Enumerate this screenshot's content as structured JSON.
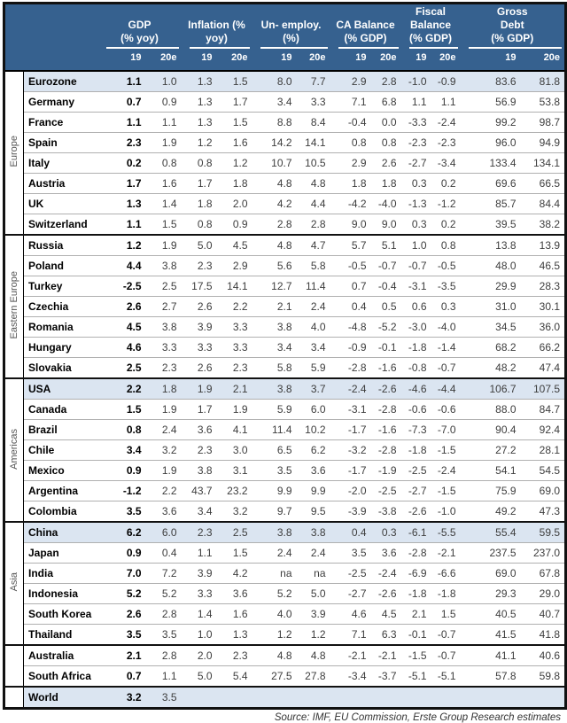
{
  "colors": {
    "header_bg": "#36618f",
    "highlight_bg": "#dbe5f1",
    "border": "#111111"
  },
  "header": {
    "groups": [
      {
        "lines": [
          "GDP",
          "(% yoy)"
        ]
      },
      {
        "lines": [
          "Inflation (%",
          "yoy)"
        ]
      },
      {
        "lines": [
          "Un- employ.",
          "(%)"
        ]
      },
      {
        "lines": [
          "CA Balance",
          "(% GDP)"
        ]
      },
      {
        "lines": [
          "Fiscal",
          "Balance",
          "(% GDP)"
        ]
      },
      {
        "lines": [
          "Gross",
          "Debt",
          "(% GDP)"
        ]
      }
    ],
    "year_labels": [
      "19",
      "20e"
    ]
  },
  "sections": [
    {
      "region": "Europe",
      "rows": [
        {
          "country": "Eurozone",
          "highlight": true,
          "values": [
            "1.1",
            "1.0",
            "1.3",
            "1.5",
            "8.0",
            "7.7",
            "2.9",
            "2.8",
            "-1.0",
            "-0.9",
            "83.6",
            "81.8"
          ]
        },
        {
          "country": "Germany",
          "highlight": false,
          "values": [
            "0.7",
            "0.9",
            "1.3",
            "1.7",
            "3.4",
            "3.3",
            "7.1",
            "6.8",
            "1.1",
            "1.1",
            "56.9",
            "53.8"
          ]
        },
        {
          "country": "France",
          "highlight": false,
          "values": [
            "1.1",
            "1.1",
            "1.3",
            "1.5",
            "8.8",
            "8.4",
            "-0.4",
            "0.0",
            "-3.3",
            "-2.4",
            "99.2",
            "98.7"
          ]
        },
        {
          "country": "Spain",
          "highlight": false,
          "values": [
            "2.3",
            "1.9",
            "1.2",
            "1.6",
            "14.2",
            "14.1",
            "0.8",
            "0.8",
            "-2.3",
            "-2.3",
            "96.0",
            "94.9"
          ]
        },
        {
          "country": "Italy",
          "highlight": false,
          "values": [
            "0.2",
            "0.8",
            "0.8",
            "1.2",
            "10.7",
            "10.5",
            "2.9",
            "2.6",
            "-2.7",
            "-3.4",
            "133.4",
            "134.1"
          ]
        },
        {
          "country": "Austria",
          "highlight": false,
          "values": [
            "1.7",
            "1.6",
            "1.7",
            "1.8",
            "4.8",
            "4.8",
            "1.8",
            "1.8",
            "0.3",
            "0.2",
            "69.6",
            "66.5"
          ]
        },
        {
          "country": "UK",
          "highlight": false,
          "values": [
            "1.3",
            "1.4",
            "1.8",
            "2.0",
            "4.2",
            "4.4",
            "-4.2",
            "-4.0",
            "-1.3",
            "-1.2",
            "85.7",
            "84.4"
          ]
        },
        {
          "country": "Switzerland",
          "highlight": false,
          "values": [
            "1.1",
            "1.5",
            "0.8",
            "0.9",
            "2.8",
            "2.8",
            "9.0",
            "9.0",
            "0.3",
            "0.2",
            "39.5",
            "38.2"
          ]
        }
      ]
    },
    {
      "region": "Eastern Europe",
      "rows": [
        {
          "country": "Russia",
          "highlight": false,
          "values": [
            "1.2",
            "1.9",
            "5.0",
            "4.5",
            "4.8",
            "4.7",
            "5.7",
            "5.1",
            "1.0",
            "0.8",
            "13.8",
            "13.9"
          ]
        },
        {
          "country": "Poland",
          "highlight": false,
          "values": [
            "4.4",
            "3.8",
            "2.3",
            "2.9",
            "5.6",
            "5.8",
            "-0.5",
            "-0.7",
            "-0.7",
            "-0.5",
            "48.0",
            "46.5"
          ]
        },
        {
          "country": "Turkey",
          "highlight": false,
          "values": [
            "-2.5",
            "2.5",
            "17.5",
            "14.1",
            "12.7",
            "11.4",
            "0.7",
            "-0.4",
            "-3.1",
            "-3.5",
            "29.9",
            "28.3"
          ]
        },
        {
          "country": "Czechia",
          "highlight": false,
          "values": [
            "2.6",
            "2.7",
            "2.6",
            "2.2",
            "2.1",
            "2.4",
            "0.4",
            "0.5",
            "0.6",
            "0.3",
            "31.0",
            "30.1"
          ]
        },
        {
          "country": "Romania",
          "highlight": false,
          "values": [
            "4.5",
            "3.8",
            "3.9",
            "3.3",
            "3.8",
            "4.0",
            "-4.8",
            "-5.2",
            "-3.0",
            "-4.0",
            "34.5",
            "36.0"
          ]
        },
        {
          "country": "Hungary",
          "highlight": false,
          "values": [
            "4.6",
            "3.3",
            "3.3",
            "3.3",
            "3.4",
            "3.4",
            "-0.9",
            "-0.1",
            "-1.8",
            "-1.4",
            "68.2",
            "66.2"
          ]
        },
        {
          "country": "Slovakia",
          "highlight": false,
          "values": [
            "2.5",
            "2.3",
            "2.6",
            "2.3",
            "5.8",
            "5.9",
            "-2.8",
            "-1.6",
            "-0.8",
            "-0.7",
            "48.2",
            "47.4"
          ]
        }
      ]
    },
    {
      "region": "Americas",
      "rows": [
        {
          "country": "USA",
          "highlight": true,
          "values": [
            "2.2",
            "1.8",
            "1.9",
            "2.1",
            "3.8",
            "3.7",
            "-2.4",
            "-2.6",
            "-4.6",
            "-4.4",
            "106.7",
            "107.5"
          ]
        },
        {
          "country": "Canada",
          "highlight": false,
          "values": [
            "1.5",
            "1.9",
            "1.7",
            "1.9",
            "5.9",
            "6.0",
            "-3.1",
            "-2.8",
            "-0.6",
            "-0.6",
            "88.0",
            "84.7"
          ]
        },
        {
          "country": "Brazil",
          "highlight": false,
          "values": [
            "0.8",
            "2.4",
            "3.6",
            "4.1",
            "11.4",
            "10.2",
            "-1.7",
            "-1.6",
            "-7.3",
            "-7.0",
            "90.4",
            "92.4"
          ]
        },
        {
          "country": "Chile",
          "highlight": false,
          "values": [
            "3.4",
            "3.2",
            "2.3",
            "3.0",
            "6.5",
            "6.2",
            "-3.2",
            "-2.8",
            "-1.8",
            "-1.5",
            "27.2",
            "28.1"
          ]
        },
        {
          "country": "Mexico",
          "highlight": false,
          "values": [
            "0.9",
            "1.9",
            "3.8",
            "3.1",
            "3.5",
            "3.6",
            "-1.7",
            "-1.9",
            "-2.5",
            "-2.4",
            "54.1",
            "54.5"
          ]
        },
        {
          "country": "Argentina",
          "highlight": false,
          "values": [
            "-1.2",
            "2.2",
            "43.7",
            "23.2",
            "9.9",
            "9.9",
            "-2.0",
            "-2.5",
            "-2.7",
            "-1.5",
            "75.9",
            "69.0"
          ]
        },
        {
          "country": "Colombia",
          "highlight": false,
          "values": [
            "3.5",
            "3.6",
            "3.4",
            "3.2",
            "9.7",
            "9.5",
            "-3.9",
            "-3.8",
            "-2.6",
            "-1.0",
            "49.2",
            "47.3"
          ]
        }
      ]
    },
    {
      "region": "Asia",
      "rows": [
        {
          "country": "China",
          "highlight": true,
          "values": [
            "6.2",
            "6.0",
            "2.3",
            "2.5",
            "3.8",
            "3.8",
            "0.4",
            "0.3",
            "-6.1",
            "-5.5",
            "55.4",
            "59.5"
          ]
        },
        {
          "country": "Japan",
          "highlight": false,
          "values": [
            "0.9",
            "0.4",
            "1.1",
            "1.5",
            "2.4",
            "2.4",
            "3.5",
            "3.6",
            "-2.8",
            "-2.1",
            "237.5",
            "237.0"
          ]
        },
        {
          "country": "India",
          "highlight": false,
          "values": [
            "7.0",
            "7.2",
            "3.9",
            "4.2",
            "na",
            "na",
            "-2.5",
            "-2.4",
            "-6.9",
            "-6.6",
            "69.0",
            "67.8"
          ]
        },
        {
          "country": "Indonesia",
          "highlight": false,
          "values": [
            "5.2",
            "5.2",
            "3.3",
            "3.6",
            "5.2",
            "5.0",
            "-2.7",
            "-2.6",
            "-1.8",
            "-1.8",
            "29.3",
            "29.0"
          ]
        },
        {
          "country": "South Korea",
          "highlight": false,
          "values": [
            "2.6",
            "2.8",
            "1.4",
            "1.6",
            "4.0",
            "3.9",
            "4.6",
            "4.5",
            "2.1",
            "1.5",
            "40.5",
            "40.7"
          ]
        },
        {
          "country": "Thailand",
          "highlight": false,
          "values": [
            "3.5",
            "3.5",
            "1.0",
            "1.3",
            "1.2",
            "1.2",
            "7.1",
            "6.3",
            "-0.1",
            "-0.7",
            "41.5",
            "41.8"
          ]
        }
      ]
    },
    {
      "region": "",
      "rows": [
        {
          "country": "Australia",
          "highlight": false,
          "values": [
            "2.1",
            "2.8",
            "2.0",
            "2.3",
            "4.8",
            "4.8",
            "-2.1",
            "-2.1",
            "-1.5",
            "-0.7",
            "41.1",
            "40.6"
          ]
        },
        {
          "country": "South Africa",
          "highlight": false,
          "values": [
            "0.7",
            "1.1",
            "5.0",
            "5.4",
            "27.5",
            "27.8",
            "-3.4",
            "-3.7",
            "-5.1",
            "-5.1",
            "57.8",
            "59.8"
          ]
        }
      ]
    },
    {
      "region": "",
      "rows": [
        {
          "country": "World",
          "highlight": true,
          "values": [
            "3.2",
            "3.5",
            "",
            "",
            "",
            "",
            "",
            "",
            "",
            "",
            "",
            ""
          ]
        }
      ]
    }
  ],
  "source": "Source: IMF, EU Commission, Erste Group Research estimates"
}
